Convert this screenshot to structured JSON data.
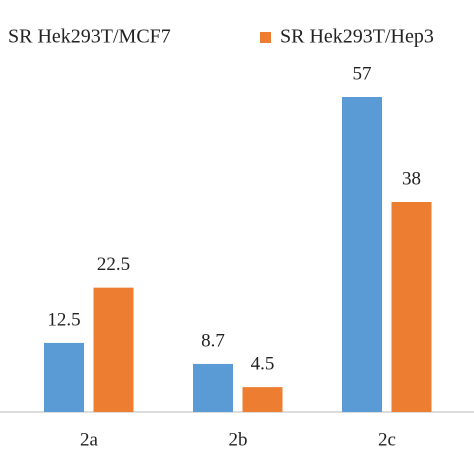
{
  "chart_data": {
    "type": "bar",
    "categories": [
      "2a",
      "2b",
      "2c"
    ],
    "series": [
      {
        "name": "SR Hek293T/MCF7",
        "color": "#5b9bd5",
        "values": [
          12.5,
          8.7,
          57
        ]
      },
      {
        "name": "SR Hek293T/Hep3",
        "color": "#ed7d31",
        "values": [
          22.5,
          4.5,
          38
        ]
      }
    ]
  }
}
